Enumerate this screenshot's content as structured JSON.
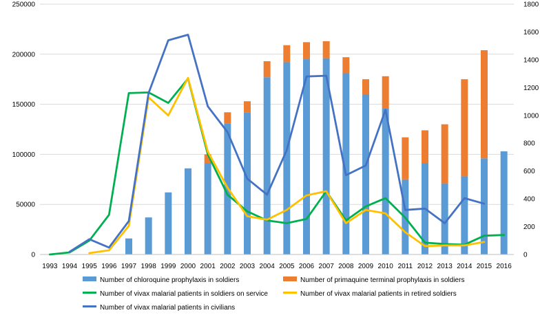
{
  "chart_data": {
    "type": "bar+line",
    "title": "",
    "xlabel": "",
    "ylabel": "",
    "y2label": "",
    "grid": true,
    "legend_position": "bottom",
    "x": [
      "1993",
      "1994",
      "1995",
      "1996",
      "1997",
      "1998",
      "1999",
      "2000",
      "2001",
      "2002",
      "2003",
      "2004",
      "2005",
      "2006",
      "2007",
      "2008",
      "2009",
      "2010",
      "2011",
      "2012",
      "2013",
      "2014",
      "2015",
      "2016"
    ],
    "left_axis": {
      "min": 0,
      "max": 250000,
      "ticks": [
        "0",
        "50000",
        "100000",
        "150000",
        "200000",
        "250000"
      ]
    },
    "right_axis": {
      "min": 0,
      "max": 1800,
      "ticks": [
        "0",
        "200",
        "400",
        "600",
        "800",
        "1000",
        "1200",
        "1400",
        "1600",
        "1800"
      ]
    },
    "bar_series": [
      {
        "name": "Number of chloroquine prophylaxis in soldiers",
        "color": "#5b9bd5",
        "axis": "left",
        "values": [
          null,
          null,
          null,
          null,
          16000,
          37000,
          62000,
          86000,
          91000,
          131000,
          142000,
          177000,
          192000,
          195000,
          196000,
          181000,
          160000,
          146000,
          75000,
          91000,
          71000,
          78000,
          96000,
          103000
        ]
      },
      {
        "name": "Number of primaquine terminal prophylaxis in soldiers",
        "color": "#ed7d31",
        "axis": "left",
        "stacked_on": 0,
        "values": [
          null,
          null,
          null,
          null,
          null,
          null,
          null,
          null,
          9000,
          11000,
          11000,
          16000,
          17000,
          17000,
          17000,
          16000,
          15000,
          32000,
          42000,
          33000,
          59000,
          97000,
          108000,
          null
        ]
      }
    ],
    "line_series": [
      {
        "name": "Number of vivax malarial patients in soldiers on service",
        "color": "#00b050",
        "axis": "right",
        "values": [
          0,
          15,
          100,
          285,
          1160,
          1165,
          1090,
          1265,
          720,
          430,
          310,
          245,
          225,
          255,
          455,
          245,
          345,
          405,
          265,
          85,
          75,
          70,
          135,
          140
        ]
      },
      {
        "name": "Number of vivax malarial patients in retired soldiers",
        "color": "#ffc000",
        "axis": "right",
        "values": [
          null,
          null,
          10,
          30,
          205,
          1130,
          1000,
          1270,
          740,
          480,
          275,
          250,
          320,
          425,
          455,
          225,
          320,
          295,
          160,
          60,
          65,
          65,
          90,
          null
        ]
      },
      {
        "name": "Number of vivax malarial patients in civilians",
        "color": "#4472c4",
        "axis": "right",
        "values": [
          null,
          20,
          110,
          50,
          240,
          1160,
          1540,
          1580,
          1065,
          880,
          545,
          430,
          750,
          1280,
          1285,
          570,
          640,
          1040,
          320,
          330,
          225,
          405,
          365,
          null
        ]
      }
    ]
  }
}
